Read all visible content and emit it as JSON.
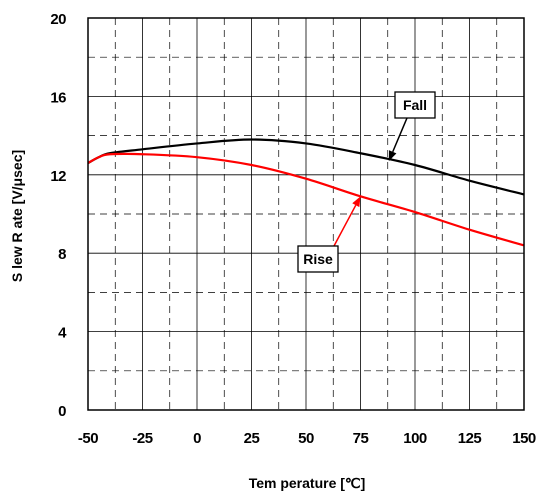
{
  "chart_data": {
    "type": "line",
    "xlabel": "Tem perature [℃]",
    "ylabel": "S lew R ate [V/μsec]",
    "xlim": [
      -50,
      150
    ],
    "ylim": [
      0,
      20
    ],
    "x_ticks": [
      -50,
      -25,
      0,
      25,
      50,
      75,
      100,
      125,
      150
    ],
    "y_ticks": [
      0,
      4,
      8,
      12,
      16,
      20
    ],
    "x_tick_labels": [
      "-50",
      "-25",
      "0",
      "25",
      "50",
      "75",
      "100",
      "125",
      "150"
    ],
    "y_tick_labels": [
      "0",
      "4",
      "8",
      "12",
      "16",
      "20"
    ],
    "grid": true,
    "series": [
      {
        "name": "Fall",
        "color": "#000000",
        "x": [
          -50,
          -45,
          -40,
          -25,
          0,
          25,
          50,
          75,
          100,
          125,
          150
        ],
        "y": [
          12.6,
          12.9,
          13.1,
          13.3,
          13.6,
          13.8,
          13.6,
          13.1,
          12.5,
          11.7,
          11.0
        ]
      },
      {
        "name": "Rise",
        "color": "#ff0000",
        "x": [
          -50,
          -45,
          -40,
          -25,
          0,
          25,
          50,
          75,
          100,
          125,
          150
        ],
        "y": [
          12.6,
          12.9,
          13.05,
          13.05,
          12.9,
          12.5,
          11.8,
          10.9,
          10.1,
          9.2,
          8.4
        ]
      }
    ],
    "annotations": [
      {
        "label": "Fall",
        "arrow_color": "#000000",
        "points_to": [
          88,
          12.7
        ]
      },
      {
        "label": "Rise",
        "arrow_color": "#ff0000",
        "points_to": [
          75,
          10.9
        ]
      }
    ]
  }
}
